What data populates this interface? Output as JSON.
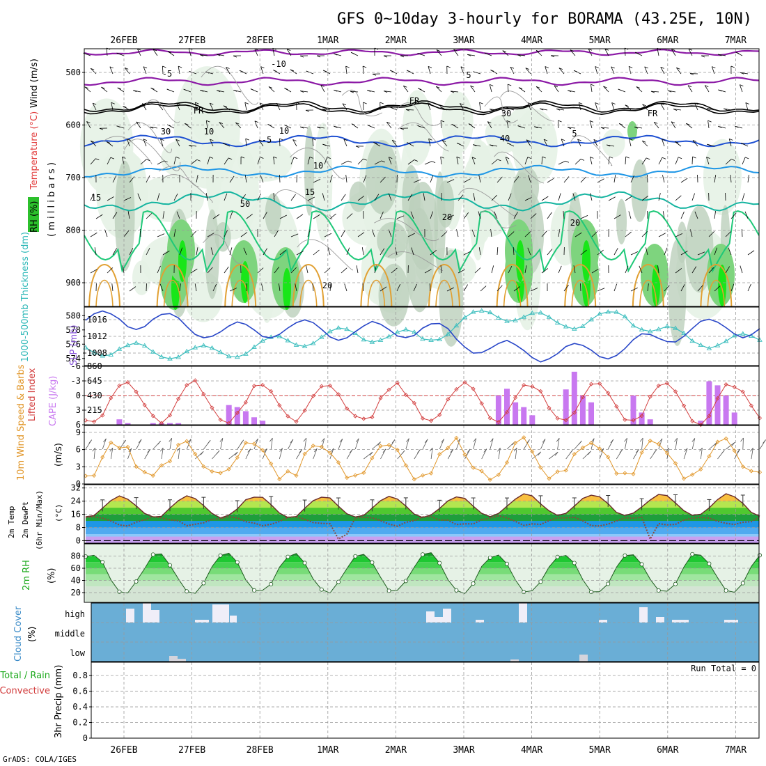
{
  "title": "GFS 0~10day 3-hourly for BORAMA (43.25E, 10N)",
  "footer": "GrADS: COLA/IGES",
  "dates": [
    "26FEB",
    "27FEB",
    "28FEB",
    "1MAR",
    "2MAR",
    "3MAR",
    "4MAR",
    "5MAR",
    "6MAR",
    "7MAR"
  ],
  "run_total": "Run Total = 0",
  "colors": {
    "purple": "#8c1aa6",
    "black": "#000000",
    "blue": "#1e50d2",
    "lightblue": "#1e96e6",
    "teal": "#14b4a0",
    "green": "#1ec878",
    "orange": "#e1a032",
    "slp": "#2846c8",
    "thick": "#3cbebe",
    "lifted": "#d23c3c",
    "cape": "#c878f0",
    "wind": "#e19628",
    "rh": "#1eaa1e",
    "cloud": "#6aaed6",
    "cloudbar": "#f0eef8"
  },
  "panels": {
    "upper": {
      "ylabel_wind": "Wind (m/s)",
      "ylabel_temp": "Temperature (°C)",
      "ylabel_rh": "RH (%)",
      "ylabel_mb": "( m i l l i b a r s )",
      "yticks": [
        "500",
        "600",
        "700",
        "800",
        "900"
      ],
      "contour_labels": [
        "-10",
        "-5",
        "5",
        "FR",
        "FR",
        "FR",
        "-5",
        "5",
        "10",
        "15",
        "15",
        "20",
        "20",
        "20",
        "30",
        "30",
        "10",
        "10",
        "50",
        "40"
      ]
    },
    "slp": {
      "ylabel_thick": "1000-500mb Thickness (dm)",
      "ylabel_slp": "SLP (mb)",
      "left_ticks": [
        "580",
        "578",
        "576",
        "574"
      ],
      "right_ticks": [
        "1016",
        "1012",
        "1008"
      ]
    },
    "cape": {
      "ylabel_li": "Lifted Index",
      "ylabel_cape": "CAPE (J/kg)",
      "left_ticks": [
        "-6",
        "-3",
        "0",
        "3",
        "6"
      ],
      "right_ticks": [
        "860",
        "645",
        "430",
        "215"
      ]
    },
    "wind": {
      "ylabel": "10m Wind Speed & Barbs",
      "ylabel_unit": "(m/s)",
      "ticks": [
        "9",
        "6",
        "3",
        "0"
      ]
    },
    "temp": {
      "ylabel1": "2m Temp",
      "ylabel2": "2m DewPt",
      "ylabel3": "(6hr Min/Max)",
      "ylabel_unit": "(°C)",
      "ticks": [
        "32",
        "24",
        "16",
        "8",
        "0"
      ]
    },
    "rh": {
      "ylabel": "2m RH",
      "ylabel_unit": "(%)",
      "ticks": [
        "80",
        "60",
        "40",
        "20"
      ]
    },
    "cloud": {
      "ylabel": "Cloud Cover",
      "ylabel_unit": "(%)",
      "levels": [
        "high",
        "middle",
        "low"
      ]
    },
    "precip": {
      "ylabel1": "Total / Rain",
      "ylabel2": "Convective",
      "ylabel3": "3hr Precip (mm)",
      "ticks": [
        "0.8",
        "0.6",
        "0.4",
        "0.2",
        "0"
      ]
    }
  },
  "chart_data": [
    {
      "type": "line",
      "name": "SLP and 1000-500mb thickness",
      "x": [
        "26FEB",
        "27FEB",
        "28FEB",
        "1MAR",
        "2MAR",
        "3MAR",
        "4MAR",
        "5MAR",
        "6MAR",
        "7MAR"
      ],
      "series": [
        {
          "name": "SLP (mb)",
          "values": [
            1016,
            1016,
            1013,
            1014,
            1013,
            1014,
            1009,
            1008,
            1009,
            1014
          ]
        },
        {
          "name": "1000-500mb Thickness (dm)",
          "values": [
            575.5,
            575.0,
            574.8,
            576.5,
            577.5,
            576.8,
            580.5,
            579.0,
            579.8,
            576.5
          ]
        }
      ]
    },
    {
      "type": "bar",
      "name": "CAPE",
      "x": [
        "26FEB",
        "27FEB",
        "28FEB",
        "1MAR",
        "2MAR",
        "3MAR",
        "4MAR",
        "5MAR",
        "6MAR",
        "7MAR"
      ],
      "series": [
        {
          "name": "CAPE (J/kg)",
          "values": [
            60,
            30,
            290,
            0,
            0,
            0,
            500,
            780,
            440,
            640
          ]
        }
      ],
      "ylim": [
        0,
        860
      ]
    },
    {
      "type": "line",
      "name": "10m wind speed",
      "x": [
        "26FEB",
        "27FEB",
        "28FEB",
        "1MAR",
        "2MAR",
        "3MAR",
        "4MAR",
        "5MAR",
        "6MAR",
        "7MAR"
      ],
      "series": [
        {
          "name": "10m Wind Speed (m/s)",
          "values": [
            1.5,
            1.5,
            3.0,
            1.5,
            1.0,
            1.0,
            8.0,
            3.0,
            3.0,
            2.0
          ]
        }
      ],
      "ylim": [
        0,
        10
      ]
    },
    {
      "type": "area",
      "name": "2m temperature",
      "x": [
        "26FEB",
        "27FEB",
        "28FEB",
        "1MAR",
        "2MAR",
        "3MAR",
        "4MAR",
        "5MAR",
        "6MAR",
        "7MAR"
      ],
      "series": [
        {
          "name": "2m Temp (°C)",
          "values": [
            27,
            29,
            27,
            28,
            28,
            28,
            30,
            30,
            30,
            29
          ]
        },
        {
          "name": "2m DewPt (°C)",
          "values": [
            14,
            12,
            14,
            12,
            10,
            10,
            12,
            10,
            8,
            12
          ]
        }
      ],
      "ylim": [
        0,
        34
      ]
    },
    {
      "type": "area",
      "name": "2m RH",
      "x": [
        "26FEB",
        "27FEB",
        "28FEB",
        "1MAR",
        "2MAR",
        "3MAR",
        "4MAR",
        "5MAR",
        "6MAR",
        "7MAR"
      ],
      "series": [
        {
          "name": "2m RH (%)",
          "values": [
            84,
            90,
            88,
            65,
            72,
            70,
            82,
            85,
            78,
            80
          ]
        }
      ],
      "ylim": [
        0,
        100
      ]
    }
  ]
}
